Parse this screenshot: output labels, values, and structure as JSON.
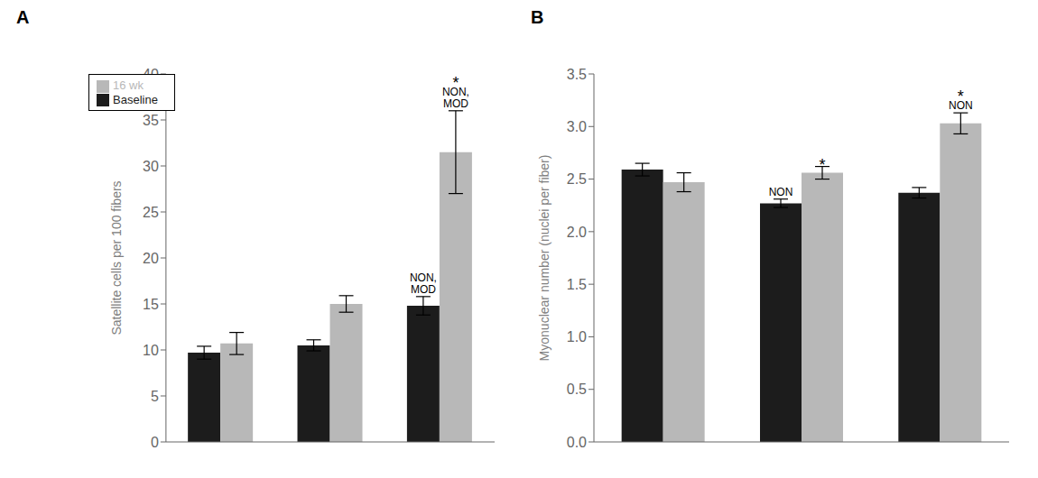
{
  "chart_data": [
    {
      "type": "bar",
      "title": "A",
      "ylabel": "Satellite cells per 100 fibers",
      "categories": [
        null,
        null,
        null
      ],
      "series": [
        {
          "name": "Baseline",
          "color": "#1c1c1c",
          "values": [
            9.7,
            10.5,
            14.8
          ],
          "errors": [
            0.7,
            0.6,
            1.0
          ]
        },
        {
          "name": "16 wk",
          "color": "#b8b8b8",
          "values": [
            10.7,
            15.0,
            31.5
          ],
          "errors": [
            1.2,
            0.9,
            4.5
          ]
        }
      ],
      "ylim": [
        0,
        40
      ],
      "yticks": [
        0,
        5,
        10,
        15,
        20,
        25,
        30,
        35,
        40
      ],
      "grid": false,
      "legend": "upper left",
      "annotations": [
        {
          "text": "NON,\nMOD",
          "series": "Baseline",
          "index": 2
        },
        {
          "text": "NON,\nMOD",
          "series": "16 wk",
          "index": 2
        },
        {
          "text": "*",
          "series": "16 wk",
          "index": 2
        }
      ]
    },
    {
      "type": "bar",
      "title": "B",
      "ylabel": "Myonuclear number (nuclei per fiber)",
      "categories": [
        null,
        null,
        null
      ],
      "series": [
        {
          "name": "Baseline",
          "color": "#1c1c1c",
          "values": [
            2.59,
            2.27,
            2.37
          ],
          "errors": [
            0.06,
            0.04,
            0.05
          ]
        },
        {
          "name": "16 wk",
          "color": "#b8b8b8",
          "values": [
            2.47,
            2.56,
            3.03
          ],
          "errors": [
            0.09,
            0.06,
            0.1
          ]
        }
      ],
      "ylim": [
        0.0,
        3.5
      ],
      "yticks": [
        {
          "value": 0,
          "label": "0.0"
        },
        0.5,
        {
          "value": 1,
          "label": "1.0"
        },
        1.5,
        {
          "value": 2,
          "label": "2.0"
        },
        2.5,
        {
          "value": 3,
          "label": "3.0"
        },
        3.5
      ],
      "grid": false,
      "annotations": [
        {
          "text": "NON",
          "series": "Baseline",
          "index": 1
        },
        {
          "text": "NON",
          "series": "16 wk",
          "index": 2
        },
        {
          "text": "*",
          "series": "16 wk",
          "index": 1
        },
        {
          "text": "*",
          "series": "16 wk",
          "index": 2
        }
      ]
    }
  ]
}
